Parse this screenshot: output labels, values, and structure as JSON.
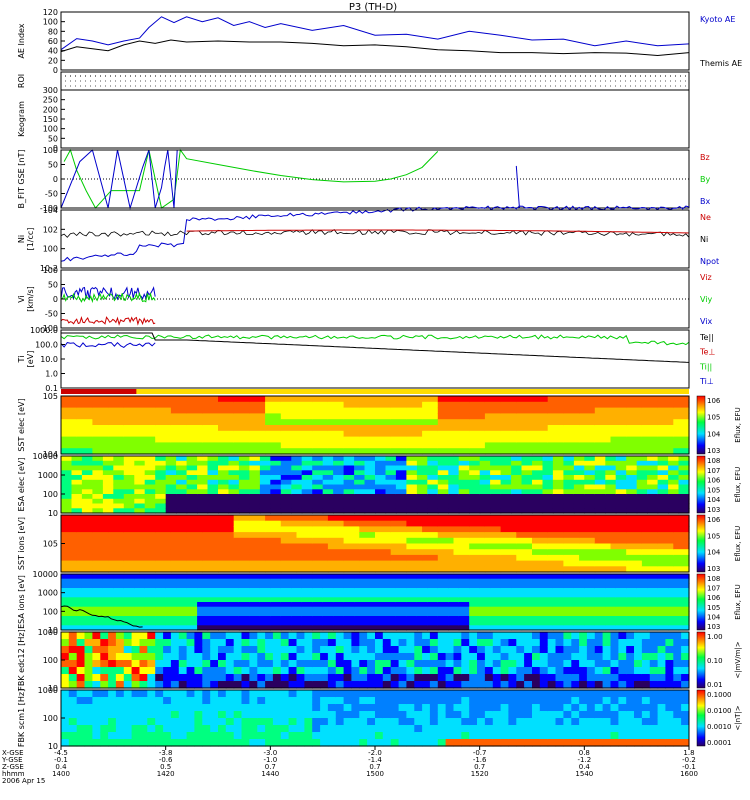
{
  "chart_data": {
    "type": "line",
    "title": "P3 (TH-D)",
    "panels": [
      {
        "id": "ae",
        "ylabel": "AE Index",
        "ylim": [
          0,
          120
        ],
        "yticks": [
          "0",
          "20",
          "40",
          "60",
          "80",
          "100",
          "120"
        ],
        "series": [
          {
            "name": "Kyoto AE",
            "color": "#0000cc",
            "x": [
              1400,
              1405,
              1410,
              1415,
              1420,
              1425,
              1428,
              1432,
              1436,
              1440,
              1445,
              1450,
              1455,
              1460,
              1465,
              1470,
              1480,
              1490,
              1500,
              1510,
              1520,
              1530,
              1540,
              1550,
              1560,
              1570,
              1580,
              1590,
              1600
            ],
            "y": [
              42,
              65,
              60,
              52,
              60,
              66,
              88,
              110,
              98,
              110,
              100,
              108,
              92,
              100,
              88,
              96,
              82,
              92,
              72,
              74,
              64,
              80,
              72,
              62,
              64,
              50,
              60,
              50,
              54
            ]
          },
          {
            "name": "Themis AE",
            "color": "#000000",
            "x": [
              1400,
              1405,
              1410,
              1415,
              1420,
              1425,
              1430,
              1435,
              1440,
              1450,
              1460,
              1470,
              1480,
              1490,
              1500,
              1510,
              1520,
              1530,
              1540,
              1550,
              1560,
              1570,
              1580,
              1590,
              1600
            ],
            "y": [
              38,
              48,
              44,
              40,
              52,
              60,
              55,
              62,
              58,
              60,
              58,
              58,
              55,
              50,
              52,
              48,
              42,
              40,
              36,
              36,
              34,
              36,
              35,
              30,
              36
            ]
          }
        ]
      },
      {
        "id": "roi",
        "ylabel": "ROI"
      },
      {
        "id": "keogram",
        "ylabel": "Keogram",
        "ylim": [
          0,
          300
        ],
        "yticks": [
          "0",
          "50",
          "100",
          "150",
          "200",
          "250",
          "300"
        ]
      },
      {
        "id": "bfield",
        "ylabel": "B_FIT GSE [nT]",
        "ylim": [
          -100,
          100
        ],
        "yticks": [
          "-100",
          "-50",
          "0",
          "50",
          "100"
        ],
        "series": [
          {
            "name": "Bz",
            "color": "#cc0000",
            "x": [],
            "y": []
          },
          {
            "name": "By",
            "color": "#00cc00",
            "x": [
              1401,
              1403,
              1405,
              1408,
              1411,
              1416,
              1425,
              1428,
              1432,
              1436,
              1438,
              1440,
              1450,
              1460,
              1470,
              1480,
              1490,
              1500,
              1505,
              1510,
              1515,
              1520
            ],
            "y": [
              60,
              100,
              30,
              -40,
              -100,
              -40,
              -40,
              100,
              -100,
              -70,
              100,
              70,
              50,
              30,
              12,
              -2,
              -10,
              -8,
              0,
              15,
              40,
              95
            ]
          },
          {
            "name": "Bx",
            "color": "#0000cc",
            "x": [
              1400,
              1403,
              1406,
              1410,
              1413,
              1415,
              1418,
              1422,
              1426,
              1428,
              1430,
              1432,
              1433,
              1434,
              1435,
              1436,
              1437
            ],
            "y": [
              -100,
              -20,
              60,
              100,
              -20,
              -100,
              100,
              -100,
              40,
              100,
              -100,
              -30,
              40,
              100,
              0,
              -100,
              100
            ]
          }
        ]
      },
      {
        "id": "density",
        "ylabel": "Ni",
        "unit": "[1/cc]",
        "yticks": [
          "10^-2",
          "10^0",
          "10^2",
          "10^4"
        ],
        "series": [
          {
            "name": "Ne",
            "color": "#cc0000"
          },
          {
            "name": "Ni",
            "color": "#000000"
          },
          {
            "name": "Npot",
            "color": "#0000cc"
          }
        ]
      },
      {
        "id": "velocity",
        "ylabel": "Vi",
        "unit": "[km/s]",
        "ylim": [
          -100,
          100
        ],
        "yticks": [
          "-100",
          "-50",
          "0",
          "50",
          "100"
        ],
        "series": [
          {
            "name": "Viz",
            "color": "#cc0000"
          },
          {
            "name": "Viy",
            "color": "#00cc00"
          },
          {
            "name": "Vix",
            "color": "#0000cc"
          }
        ]
      },
      {
        "id": "temperature",
        "ylabel": "Ti",
        "unit": "[eV]",
        "yticks": [
          "0.1",
          "1.0",
          "10.0",
          "100.0",
          "1000.0"
        ],
        "series": [
          {
            "name": "Te||",
            "color": "#000000"
          },
          {
            "name": "Te⊥",
            "color": "#cc0000"
          },
          {
            "name": "Ti||",
            "color": "#00cc00"
          },
          {
            "name": "Ti⊥",
            "color": "#0000cc"
          }
        ]
      },
      {
        "id": "sst_e",
        "ylabel": "SST elec [eV]",
        "yticks": [
          "10^4",
          "10^5"
        ],
        "colorbar": {
          "label": "Eflux, EFU",
          "ticks": [
            "10^3",
            "10^4",
            "10^5",
            "10^6"
          ]
        }
      },
      {
        "id": "esa_e",
        "ylabel": "ESA elec [eV]",
        "yticks": [
          "10",
          "100",
          "1000",
          "10000"
        ],
        "colorbar": {
          "label": "Eflux, EFU",
          "ticks": [
            "10^3",
            "10^4",
            "10^5",
            "10^6",
            "10^7",
            "10^8"
          ]
        }
      },
      {
        "id": "sst_i",
        "ylabel": "SST ions [eV]",
        "yticks": [
          "10^5"
        ],
        "colorbar": {
          "label": "Eflux, EFU",
          "ticks": [
            "10^3",
            "10^4",
            "10^5",
            "10^6"
          ]
        }
      },
      {
        "id": "esa_i",
        "ylabel": "ESA ions [eV]",
        "yticks": [
          "10",
          "100",
          "1000",
          "10000"
        ],
        "colorbar": {
          "label": "Eflux, EFU",
          "ticks": [
            "10^3",
            "10^4",
            "10^5",
            "10^6",
            "10^7",
            "10^8"
          ]
        }
      },
      {
        "id": "fbk_e",
        "ylabel": "FBK edc12 [Hz]",
        "yticks": [
          "10",
          "100",
          "1000"
        ],
        "colorbar": {
          "label": "<|mV/m|>",
          "ticks": [
            "0.01",
            "0.10",
            "1.00"
          ]
        }
      },
      {
        "id": "fbk_b",
        "ylabel": "FBK scm1 [Hz]",
        "yticks": [
          "10",
          "100",
          "1000"
        ],
        "colorbar": {
          "label": "<|nT|>",
          "ticks": [
            "0.0001",
            "0.0010",
            "0.0100",
            "0.1000"
          ]
        }
      }
    ],
    "x_axis": {
      "row_labels": [
        "X-GSE",
        "Y-GSE",
        "Z-GSE",
        "hhmm",
        "2006 Apr 15"
      ],
      "ticks": [
        {
          "x": "-4.5",
          "y": "-0.1",
          "z": "0.4",
          "t": "1400"
        },
        {
          "x": "-3.8",
          "y": "-0.6",
          "z": "0.5",
          "t": "1420"
        },
        {
          "x": "-3.0",
          "y": "-1.0",
          "z": "0.7",
          "t": "1440"
        },
        {
          "x": "-2.0",
          "y": "-1.4",
          "z": "0.7",
          "t": "1500"
        },
        {
          "x": "-0.7",
          "y": "-1.6",
          "z": "0.7",
          "t": "1520"
        },
        {
          "x": "0.8",
          "y": "-1.2",
          "z": "0.4",
          "t": "1540"
        },
        {
          "x": "1.8",
          "y": "-0.2",
          "z": "-0.1",
          "t": "1600"
        }
      ],
      "range": [
        1400,
        1600
      ]
    }
  }
}
